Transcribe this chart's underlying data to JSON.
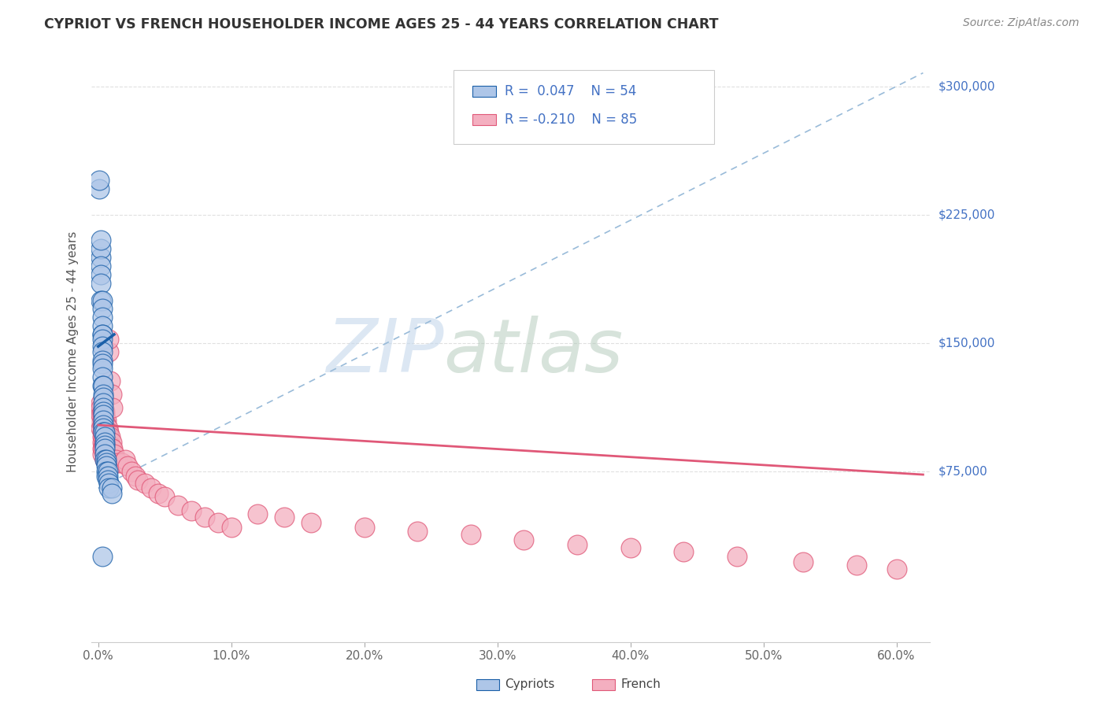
{
  "title": "CYPRIOT VS FRENCH HOUSEHOLDER INCOME AGES 25 - 44 YEARS CORRELATION CHART",
  "source": "Source: ZipAtlas.com",
  "ylabel": "Householder Income Ages 25 - 44 years",
  "xlabel_ticks": [
    "0.0%",
    "10.0%",
    "20.0%",
    "30.0%",
    "40.0%",
    "50.0%",
    "60.0%"
  ],
  "ylabel_ticks": [
    "$75,000",
    "$150,000",
    "$225,000",
    "$300,000"
  ],
  "ylabel_values": [
    75000,
    150000,
    225000,
    300000
  ],
  "xmin": -0.005,
  "xmax": 0.625,
  "ymin": -25000,
  "ymax": 315000,
  "watermark_part1": "ZIP",
  "watermark_part2": "atlas",
  "cypriot_color": "#aec6e8",
  "french_color": "#f4afc0",
  "cypriot_line_color": "#1a5fa8",
  "french_line_color": "#e05878",
  "trendline_dashed_color": "#99bbd9",
  "background_color": "#ffffff",
  "grid_color": "#e0e0e0",
  "cypriot_scatter_x": [
    0.001,
    0.001,
    0.002,
    0.002,
    0.002,
    0.002,
    0.002,
    0.002,
    0.002,
    0.003,
    0.003,
    0.003,
    0.003,
    0.003,
    0.003,
    0.003,
    0.003,
    0.003,
    0.003,
    0.003,
    0.003,
    0.003,
    0.003,
    0.004,
    0.004,
    0.004,
    0.004,
    0.004,
    0.004,
    0.004,
    0.004,
    0.004,
    0.004,
    0.004,
    0.005,
    0.005,
    0.005,
    0.005,
    0.005,
    0.005,
    0.005,
    0.006,
    0.006,
    0.006,
    0.006,
    0.006,
    0.007,
    0.007,
    0.007,
    0.008,
    0.008,
    0.01,
    0.01,
    0.003
  ],
  "cypriot_scatter_y": [
    240000,
    245000,
    200000,
    205000,
    210000,
    195000,
    190000,
    185000,
    175000,
    175000,
    170000,
    165000,
    160000,
    155000,
    155000,
    152000,
    148000,
    145000,
    140000,
    138000,
    135000,
    130000,
    125000,
    125000,
    120000,
    118000,
    115000,
    112000,
    110000,
    108000,
    105000,
    102000,
    100000,
    98000,
    98000,
    95000,
    92000,
    90000,
    88000,
    85000,
    82000,
    82000,
    80000,
    78000,
    75000,
    72000,
    75000,
    72000,
    70000,
    68000,
    65000,
    65000,
    62000,
    25000
  ],
  "french_scatter_x": [
    0.001,
    0.001,
    0.002,
    0.002,
    0.002,
    0.002,
    0.003,
    0.003,
    0.003,
    0.003,
    0.003,
    0.003,
    0.003,
    0.003,
    0.003,
    0.004,
    0.004,
    0.004,
    0.004,
    0.004,
    0.004,
    0.004,
    0.005,
    0.005,
    0.005,
    0.005,
    0.005,
    0.005,
    0.005,
    0.005,
    0.006,
    0.006,
    0.006,
    0.006,
    0.006,
    0.007,
    0.007,
    0.007,
    0.007,
    0.008,
    0.008,
    0.008,
    0.009,
    0.009,
    0.01,
    0.01,
    0.011,
    0.012,
    0.013,
    0.015,
    0.018,
    0.02,
    0.022,
    0.025,
    0.028,
    0.03,
    0.035,
    0.04,
    0.045,
    0.05,
    0.06,
    0.07,
    0.08,
    0.09,
    0.1,
    0.12,
    0.14,
    0.16,
    0.2,
    0.24,
    0.28,
    0.32,
    0.36,
    0.4,
    0.44,
    0.48,
    0.53,
    0.57,
    0.6,
    0.008,
    0.008,
    0.009,
    0.01,
    0.011
  ],
  "french_scatter_y": [
    110000,
    105000,
    115000,
    112000,
    108000,
    100000,
    110000,
    108000,
    105000,
    102000,
    98000,
    95000,
    92000,
    88000,
    85000,
    108000,
    105000,
    102000,
    98000,
    95000,
    90000,
    88000,
    110000,
    108000,
    105000,
    100000,
    95000,
    90000,
    85000,
    82000,
    105000,
    102000,
    98000,
    92000,
    88000,
    100000,
    98000,
    92000,
    88000,
    98000,
    95000,
    90000,
    95000,
    90000,
    92000,
    88000,
    88000,
    85000,
    82000,
    80000,
    80000,
    82000,
    78000,
    75000,
    72000,
    70000,
    68000,
    65000,
    62000,
    60000,
    55000,
    52000,
    48000,
    45000,
    42000,
    50000,
    48000,
    45000,
    42000,
    40000,
    38000,
    35000,
    32000,
    30000,
    28000,
    25000,
    22000,
    20000,
    18000,
    145000,
    152000,
    128000,
    120000,
    112000
  ]
}
